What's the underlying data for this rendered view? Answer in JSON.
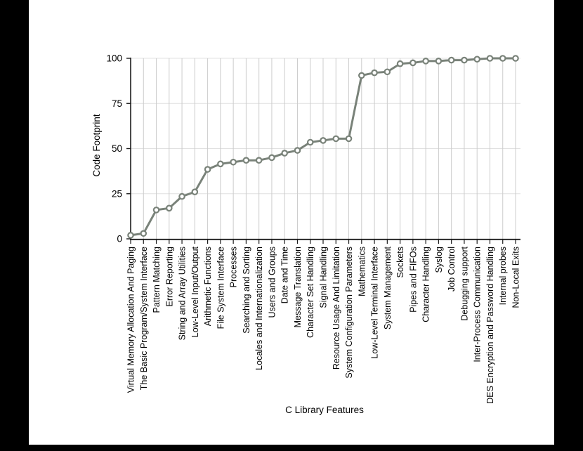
{
  "page": {
    "background": "#000000"
  },
  "chart": {
    "background": "#ffffff",
    "line_color": "#798279",
    "marker_fill": "#ffffff",
    "grid_vertical_color": "#cccccc",
    "grid_horizontal_color": "#e0e0e0",
    "axis_color": "#1c1c1c",
    "label_color": "#000000"
  },
  "chart_data": {
    "type": "line",
    "title": "",
    "xlabel": "C Library Features",
    "ylabel": "Code Footprint",
    "ylim": [
      0,
      100
    ],
    "yticks": [
      0,
      25,
      50,
      75,
      100
    ],
    "grid": true,
    "legend_position": "none",
    "marker": "circle",
    "categories": [
      "Virtual Memory Allocation And Paging",
      "The Basic Program/System Interface",
      "Pattern Matching",
      "Error Reporting",
      "String and Array Utilities",
      "Low-Level Input/Output",
      "Arithmetic Functions",
      "File System Interface",
      "Processes",
      "Searching and Sorting",
      "Locales and Internationalization",
      "Users and Groups",
      "Date and Time",
      "Message Translation",
      "Character Set Handling",
      "Signal Handling",
      "Resource Usage And Limitation",
      "System Configuration Parameters",
      "Mathematics",
      "Low-Level Terminal Interface",
      "System Management",
      "Sockets",
      "Pipes and FIFOs",
      "Character Handling",
      "Syslog",
      "Job Control",
      "Debugging support",
      "Inter-Process Communication",
      "DES Encryption and Password Handling",
      "Internal probes",
      "Non-Local Exits"
    ],
    "values": [
      2,
      3,
      16,
      17,
      23.5,
      26,
      38.5,
      41.5,
      42.5,
      43.5,
      43.5,
      45,
      47.5,
      49,
      53.5,
      54.5,
      55.5,
      55.5,
      90.5,
      92,
      92.5,
      97,
      97.5,
      98.5,
      98.5,
      99,
      99,
      99.5,
      100,
      100,
      100
    ]
  }
}
